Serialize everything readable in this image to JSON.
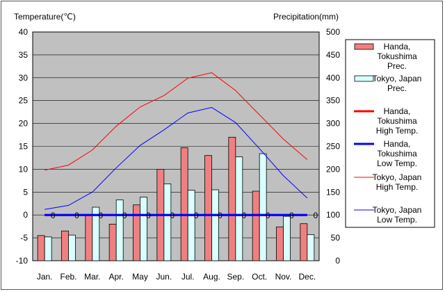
{
  "chart_data": {
    "type": "bar+line",
    "y_left_label": "Temperature(℃)",
    "y_right_label": "Precipitation(mm)",
    "y_left_range": [
      -10,
      40
    ],
    "y_right_range": [
      0,
      500
    ],
    "y_left_ticks": [
      "40",
      "35",
      "30",
      "25",
      "20",
      "15",
      "10",
      "5",
      "0",
      "-5",
      "-10"
    ],
    "y_right_ticks": [
      "500",
      "450",
      "400",
      "350",
      "300",
      "250",
      "200",
      "150",
      "100",
      "50",
      "0"
    ],
    "grid": true,
    "legend_position": "right",
    "categories": [
      "Jan.",
      "Feb.",
      "Mar.",
      "Apr.",
      "May",
      "Jun.",
      "Jul.",
      "Aug.",
      "Sep.",
      "Oct.",
      "Nov.",
      "Dec."
    ],
    "bar_series": [
      {
        "name": "Handa, Tokushima Prec.",
        "axis": "right",
        "color": "#f08080",
        "values": [
          55,
          65,
          100,
          80,
          122,
          200,
          247,
          230,
          270,
          152,
          74,
          81
        ]
      },
      {
        "name": "Tokyo, Japan Prec.",
        "axis": "right",
        "color": "#d9ffff",
        "values": [
          52,
          56,
          117,
          133,
          139,
          168,
          154,
          155,
          227,
          234,
          97,
          57
        ]
      }
    ],
    "line_series": [
      {
        "name": "Handa, Tokushima High Temp.",
        "axis": "left",
        "color": "#ff0000",
        "width": "thick",
        "values": [
          0,
          0,
          0,
          0,
          0,
          0,
          0,
          0,
          0,
          0,
          0,
          0
        ]
      },
      {
        "name": "Handa, Tokushima Low Temp.",
        "axis": "left",
        "color": "#0000ff",
        "width": "thick",
        "values": [
          0,
          0,
          0,
          0,
          0,
          0,
          0,
          0,
          0,
          0,
          0,
          0
        ]
      },
      {
        "name": "Tokyo, Japan High Temp.",
        "axis": "left",
        "color": "#ff0000",
        "width": "thin",
        "values": [
          9.8,
          10.9,
          14.2,
          19.4,
          23.6,
          26.1,
          29.9,
          31.1,
          27.2,
          21.9,
          16.6,
          12.1
        ]
      },
      {
        "name": "Tokyo, Japan Low Temp.",
        "axis": "left",
        "color": "#0000ff",
        "width": "thin",
        "values": [
          1.2,
          2.1,
          5.0,
          10.3,
          15.2,
          18.6,
          22.3,
          23.5,
          20.2,
          14.5,
          8.6,
          3.7
        ]
      }
    ],
    "data_labels": [
      "0",
      "0",
      "0",
      "0",
      "0",
      "0",
      "0",
      "0",
      "0",
      "0",
      "0",
      "0"
    ]
  }
}
